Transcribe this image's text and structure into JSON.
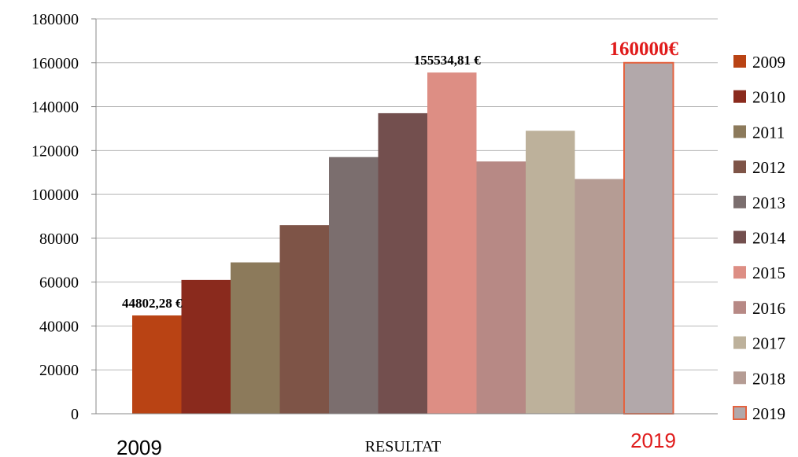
{
  "chart_data": {
    "type": "bar",
    "categories": [
      "2009",
      "2010",
      "2011",
      "2012",
      "2013",
      "2014",
      "2015",
      "2016",
      "2017",
      "2018",
      "2019"
    ],
    "values": [
      44802.28,
      61000,
      69000,
      86000,
      117000,
      137000,
      155534.81,
      115000,
      129000,
      107000,
      160000
    ],
    "colors": [
      "#b94314",
      "#8a2a1d",
      "#8c7a5b",
      "#7e5447",
      "#7b6e6e",
      "#734f4e",
      "#dd8e84",
      "#b78985",
      "#bdb19b",
      "#b59c94",
      "#b2a8aa"
    ],
    "highlight_border": "#e4623f",
    "highlight_color": "#e01b1b",
    "ylim": [
      0,
      180000
    ],
    "yticks": [
      "0",
      "20000",
      "40000",
      "60000",
      "80000",
      "100000",
      "120000",
      "140000",
      "160000",
      "180000"
    ],
    "xlabel": "RESULTAT",
    "legend_position": "right",
    "data_labels": [
      {
        "index": 0,
        "text": "44802,28  €"
      },
      {
        "index": 6,
        "text": "155534,81  €"
      },
      {
        "index": 10,
        "text": "160000€"
      }
    ],
    "start_label": "2009",
    "end_label": "2019"
  }
}
